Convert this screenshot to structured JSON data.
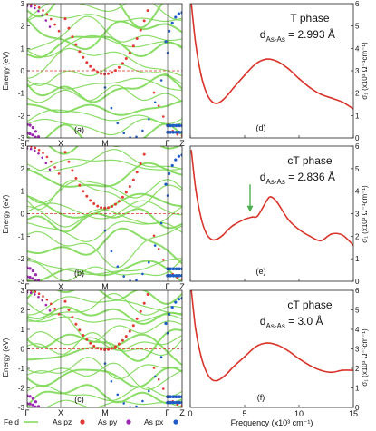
{
  "figure": {
    "legend": {
      "items": [
        {
          "label": "Fe d",
          "color": "#7ed957",
          "kind": "line"
        },
        {
          "label": "As pz",
          "color": "#e53935",
          "kind": "dot"
        },
        {
          "label": "As py",
          "color": "#9c27b0",
          "kind": "dot"
        },
        {
          "label": "As px",
          "color": "#1e5cc8",
          "kind": "dot"
        }
      ]
    },
    "xlabel_right": "Frequency (x10³ cm⁻¹)",
    "ylabel_left": "Energy (eV)",
    "ylabel_right": "σ₁ (x10³ Ω⁻¹cm⁻¹)",
    "kpoints": [
      "Γ",
      "X",
      "M",
      "Γ",
      "Z"
    ],
    "x_ticks": [
      "0",
      "5",
      "10",
      "15"
    ],
    "y_ticks_left": [
      "3",
      "2",
      "1",
      "0",
      "-1",
      "-2",
      "-3"
    ],
    "y_ticks_right": [
      "6",
      "5",
      "4",
      "3",
      "2",
      "1",
      "0"
    ]
  },
  "chart_data": [
    {
      "type": "line",
      "panel": "(a)",
      "xlabel": "",
      "ylabel": "Energy (eV)",
      "ylim": [
        -3,
        3
      ],
      "x": [
        "Γ",
        "X",
        "M",
        "Γ",
        "Z"
      ],
      "series": []
    },
    {
      "type": "line",
      "panel": "(d)",
      "title": "T phase",
      "subtitle": "dAs-As = 2.993 Å",
      "xlim": [
        0,
        15
      ],
      "ylim": [
        0,
        6
      ],
      "x": [
        0.1,
        0.5,
        1.0,
        1.5,
        2.0,
        2.5,
        3.0,
        3.5,
        4.0,
        5.0,
        6.0,
        7.0,
        8.0,
        9.0,
        10.0,
        11.0,
        12.0,
        13.0,
        14.0,
        15.0
      ],
      "series": [
        {
          "values": [
            6.0,
            4.2,
            2.8,
            2.0,
            1.62,
            1.55,
            1.7,
            1.95,
            2.25,
            2.8,
            3.3,
            3.52,
            3.42,
            3.1,
            2.65,
            2.25,
            1.95,
            1.78,
            1.6,
            1.3
          ]
        }
      ]
    },
    {
      "type": "line",
      "panel": "(b)",
      "xlabel": "",
      "ylabel": "Energy (eV)",
      "ylim": [
        -3,
        3
      ],
      "x": [
        "Γ",
        "X",
        "M",
        "Γ",
        "Z"
      ],
      "series": []
    },
    {
      "type": "line",
      "panel": "(e)",
      "title": "cT phase",
      "subtitle": "dAs-As = 2.836 Å",
      "xlim": [
        0,
        15
      ],
      "ylim": [
        0,
        6
      ],
      "x": [
        0.1,
        0.5,
        1.0,
        1.5,
        2.0,
        2.5,
        3.0,
        3.5,
        4.0,
        5.0,
        5.7,
        6.2,
        7.0,
        7.4,
        8.0,
        9.0,
        10.0,
        11.0,
        12.0,
        13.0,
        14.0,
        15.0
      ],
      "series": [
        {
          "values": [
            5.8,
            4.1,
            2.8,
            2.1,
            1.85,
            1.88,
            2.05,
            2.3,
            2.5,
            2.75,
            2.85,
            2.9,
            3.55,
            3.75,
            3.5,
            2.75,
            2.3,
            2.0,
            1.8,
            2.1,
            2.05,
            1.6
          ]
        }
      ]
    },
    {
      "type": "line",
      "panel": "(c)",
      "xlabel": "",
      "ylabel": "Energy (eV)",
      "ylim": [
        -3,
        3
      ],
      "x": [
        "Γ",
        "X",
        "M",
        "Γ",
        "Z"
      ],
      "series": []
    },
    {
      "type": "line",
      "panel": "(f)",
      "title": "cT phase",
      "subtitle": "dAs-As = 3.0 Å",
      "xlabel": "Frequency (x10³ cm⁻¹)",
      "xlim": [
        0,
        15
      ],
      "ylim": [
        0,
        6
      ],
      "x": [
        0.1,
        0.5,
        1.0,
        1.5,
        2.0,
        2.5,
        3.0,
        3.5,
        4.0,
        5.0,
        6.0,
        7.0,
        8.0,
        9.0,
        10.0,
        11.0,
        12.0,
        13.0,
        14.0,
        15.0
      ],
      "series": [
        {
          "values": [
            6.0,
            4.0,
            2.6,
            1.8,
            1.42,
            1.38,
            1.55,
            1.8,
            2.1,
            2.6,
            3.1,
            3.3,
            3.2,
            2.9,
            2.5,
            2.15,
            1.9,
            1.8,
            1.9,
            1.9
          ]
        }
      ]
    }
  ],
  "panels": {
    "a": {
      "label": "(a)"
    },
    "b": {
      "label": "(b)"
    },
    "c": {
      "label": "(c)"
    },
    "d": {
      "label": "(d)",
      "phase": "T phase",
      "dist_prefix": "d",
      "dist_sub": "As-As",
      "dist_value": " = 2.993 Å"
    },
    "e": {
      "label": "(e)",
      "phase": "cT phase",
      "dist_prefix": "d",
      "dist_sub": "As-As",
      "dist_value": " = 2.836 Å"
    },
    "f": {
      "label": "(f)",
      "phase": "cT phase",
      "dist_prefix": "d",
      "dist_sub": "As-As",
      "dist_value": " = 3.0 Å"
    }
  },
  "colors": {
    "fe": "#7ed957",
    "pz": "#e53935",
    "py": "#9c27b0",
    "px": "#1e5cc8",
    "optical": "#d9342b",
    "arrow": "#4caf50",
    "fermi": "#d9342b"
  }
}
